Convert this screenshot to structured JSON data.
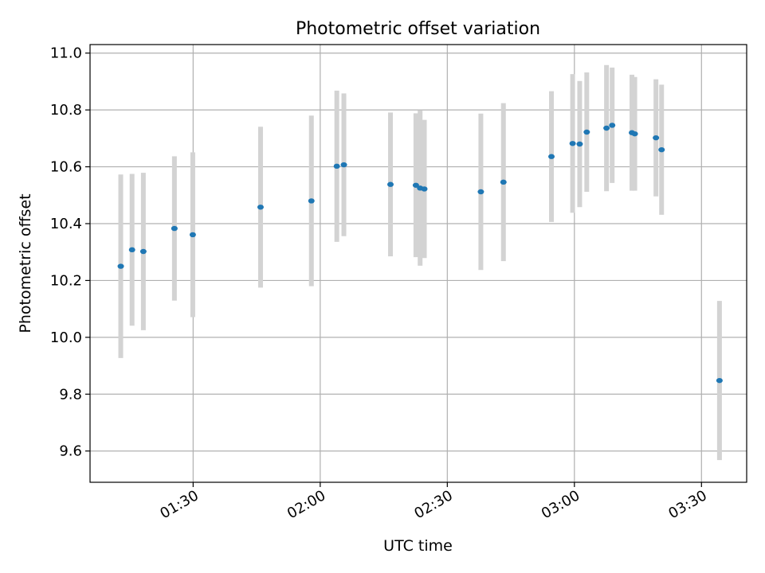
{
  "chart_data": {
    "type": "scatter",
    "title": "Photometric offset variation",
    "xlabel": "UTC time",
    "ylabel": "Photometric offset",
    "grid": true,
    "legend": "none",
    "xlim": [
      "01:05:40",
      "03:40:40"
    ],
    "ylim": [
      9.49,
      11.03
    ],
    "x_ticks": [
      "01:30",
      "02:00",
      "02:30",
      "03:00",
      "03:30"
    ],
    "y_ticks": [
      "9.6",
      "9.8",
      "10.0",
      "10.2",
      "10.4",
      "10.6",
      "10.8",
      "11.0"
    ],
    "colors": {
      "point": "#1f77b4",
      "errorbar": "#d3d3d3",
      "grid": "#b0b0b0"
    },
    "series": [
      {
        "points": [
          {
            "x": "01:12:55",
            "y": 10.25,
            "err": 0.323
          },
          {
            "x": "01:15:35",
            "y": 10.308,
            "err": 0.267
          },
          {
            "x": "01:18:15",
            "y": 10.302,
            "err": 0.277
          },
          {
            "x": "01:25:35",
            "y": 10.383,
            "err": 0.254
          },
          {
            "x": "01:29:55",
            "y": 10.361,
            "err": 0.29
          },
          {
            "x": "01:45:55",
            "y": 10.458,
            "err": 0.283
          },
          {
            "x": "01:57:55",
            "y": 10.48,
            "err": 0.3
          },
          {
            "x": "02:03:55",
            "y": 10.602,
            "err": 0.266
          },
          {
            "x": "02:05:35",
            "y": 10.607,
            "err": 0.251
          },
          {
            "x": "02:16:35",
            "y": 10.538,
            "err": 0.253
          },
          {
            "x": "02:22:35",
            "y": 10.535,
            "err": 0.253
          },
          {
            "x": "02:23:35",
            "y": 10.525,
            "err": 0.273
          },
          {
            "x": "02:24:35",
            "y": 10.522,
            "err": 0.243
          },
          {
            "x": "02:37:55",
            "y": 10.512,
            "err": 0.275
          },
          {
            "x": "02:43:15",
            "y": 10.546,
            "err": 0.278
          },
          {
            "x": "02:54:35",
            "y": 10.636,
            "err": 0.23
          },
          {
            "x": "02:59:35",
            "y": 10.682,
            "err": 0.244
          },
          {
            "x": "03:01:15",
            "y": 10.68,
            "err": 0.222
          },
          {
            "x": "03:02:55",
            "y": 10.722,
            "err": 0.21
          },
          {
            "x": "03:07:35",
            "y": 10.736,
            "err": 0.222
          },
          {
            "x": "03:08:55",
            "y": 10.746,
            "err": 0.203
          },
          {
            "x": "03:13:35",
            "y": 10.72,
            "err": 0.204
          },
          {
            "x": "03:14:15",
            "y": 10.716,
            "err": 0.2
          },
          {
            "x": "03:19:15",
            "y": 10.702,
            "err": 0.206
          },
          {
            "x": "03:20:35",
            "y": 10.66,
            "err": 0.229
          },
          {
            "x": "03:34:15",
            "y": 9.848,
            "err": 0.28
          }
        ]
      }
    ]
  }
}
